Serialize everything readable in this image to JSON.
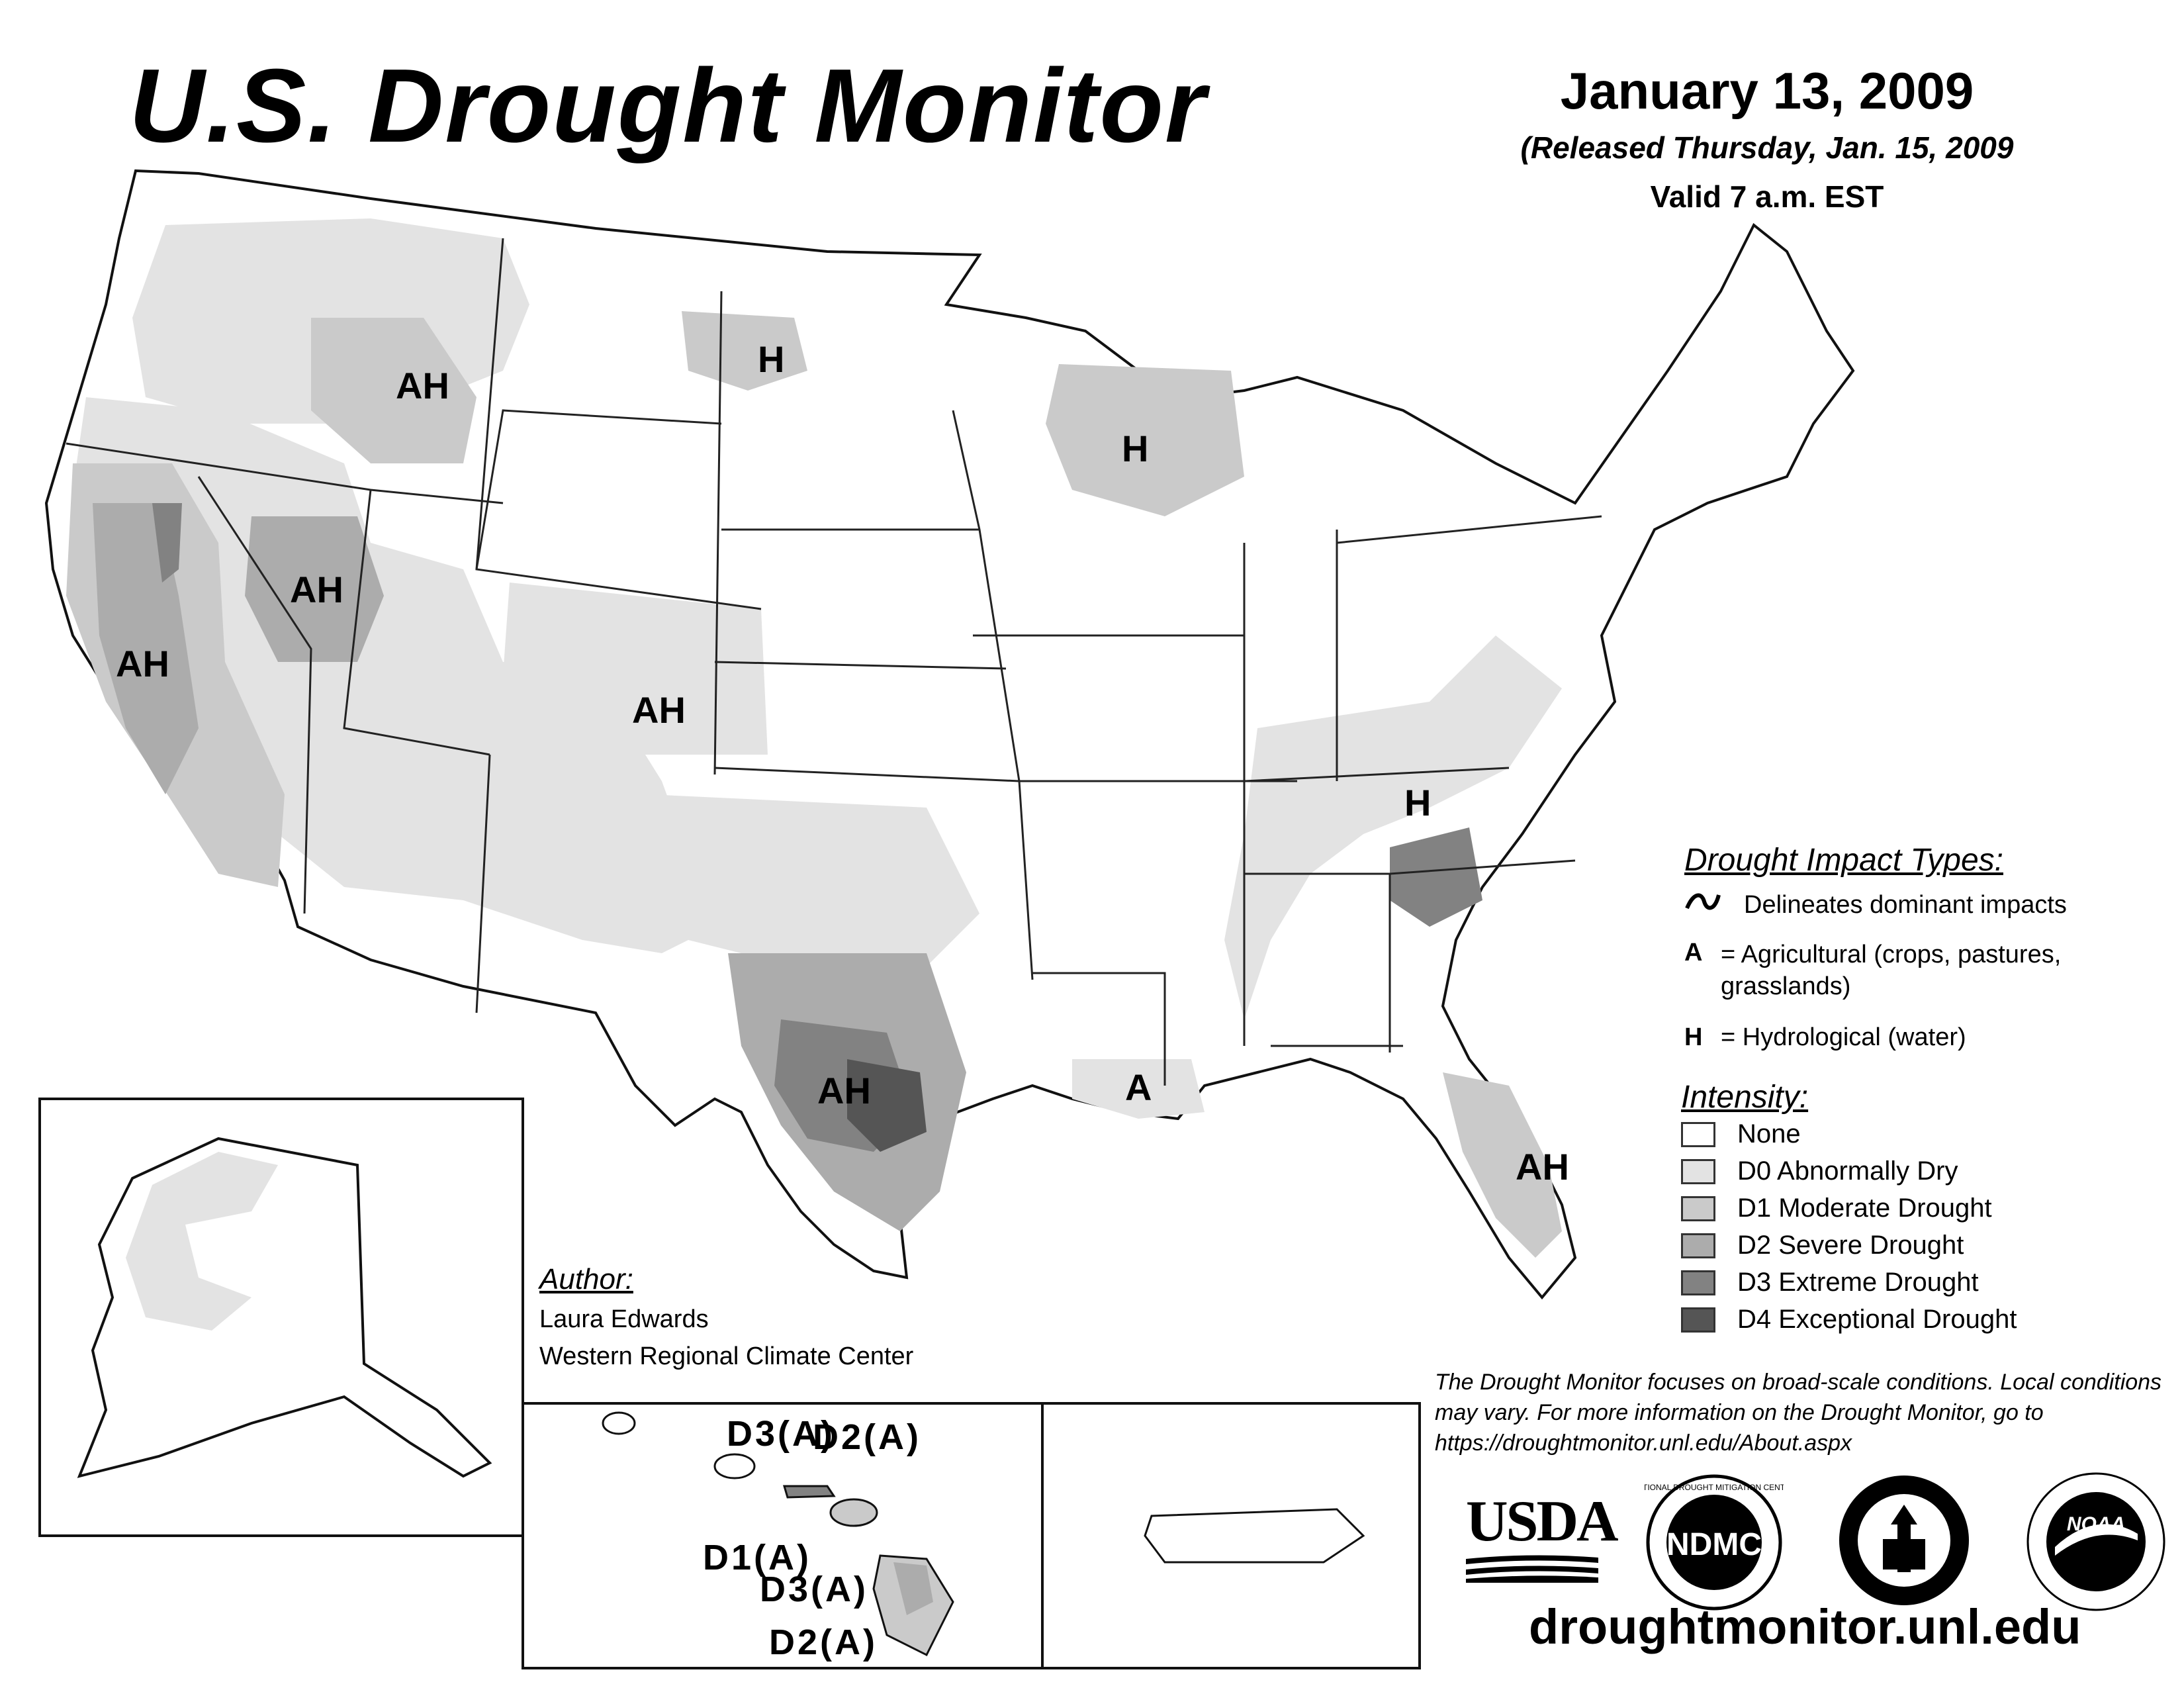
{
  "header": {
    "title": "U.S. Drought Monitor",
    "date": "January 13, 2009",
    "released": "(Released Thursday, Jan. 15, 2009",
    "valid": "Valid 7 a.m. EST"
  },
  "impact_legend": {
    "heading": "Drought Impact Types:",
    "delineates": "Delineates dominant impacts",
    "agricultural_code": "A",
    "agricultural_text": "= Agricultural (crops, pastures, grasslands)",
    "hydrological_code": "H",
    "hydrological_text": "= Hydrological (water)"
  },
  "intensity_legend": {
    "heading": "Intensity:",
    "items": [
      {
        "label": "None",
        "color": "#ffffff"
      },
      {
        "label": "D0 Abnormally Dry",
        "color": "#e3e3e3"
      },
      {
        "label": "D1 Moderate Drought",
        "color": "#cacaca"
      },
      {
        "label": "D2 Severe Drought",
        "color": "#acacac"
      },
      {
        "label": "D3 Extreme Drought",
        "color": "#828282"
      },
      {
        "label": "D4 Exceptional Drought",
        "color": "#555555"
      }
    ]
  },
  "map_labels": {
    "pacific_nw": "AH",
    "california": "AH",
    "nevada": "AH",
    "colorado": "AH",
    "texas": "AH",
    "florida": "AH",
    "north_dakota": "H",
    "wisconsin": "H",
    "tennessee": "H",
    "louisiana": "A"
  },
  "hawaii_labels": {
    "kauai_oahu_d3": "D3(A)",
    "maui_d2": "D2(A)",
    "oahu_d1": "D1(A)",
    "big_island_d3": "D3(A)",
    "big_island_d2": "D2(A)"
  },
  "author": {
    "heading": "Author:",
    "name": "Laura Edwards",
    "org": "Western Regional Climate Center"
  },
  "disclaimer": "The Drought Monitor focuses on broad-scale conditions. Local conditions may vary. For more information on the Drought Monitor, go to https://droughtmonitor.unl.edu/About.aspx",
  "logos": {
    "usda": "USDA",
    "ndmc": "NDMC",
    "ndmc_ring": "NATIONAL DROUGHT MITIGATION CENTER",
    "noaa": "NOAA"
  },
  "website": "droughtmonitor.unl.edu"
}
